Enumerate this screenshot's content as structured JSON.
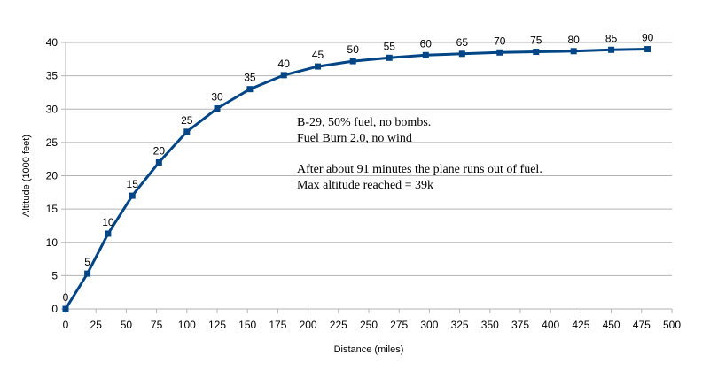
{
  "chart_data": {
    "type": "line",
    "title": "",
    "xlabel": "Distance (miles)",
    "ylabel": "Altitude (1000 feet)",
    "xlim": [
      0,
      500
    ],
    "ylim": [
      0,
      40
    ],
    "x_ticks": [
      0,
      25,
      50,
      75,
      100,
      125,
      150,
      175,
      200,
      225,
      250,
      275,
      300,
      325,
      350,
      375,
      400,
      425,
      450,
      475,
      500
    ],
    "y_ticks": [
      0,
      5,
      10,
      15,
      20,
      25,
      30,
      35,
      40
    ],
    "grid": "horizontal",
    "legend": "none",
    "line_color": "#004586",
    "series": [
      {
        "points": [
          {
            "x": 0,
            "y": 0,
            "label": "0"
          },
          {
            "x": 18,
            "y": 5.3,
            "label": "5"
          },
          {
            "x": 35,
            "y": 11.3,
            "label": "10"
          },
          {
            "x": 55,
            "y": 17.0,
            "label": "15"
          },
          {
            "x": 77,
            "y": 22.0,
            "label": "20"
          },
          {
            "x": 100,
            "y": 26.6,
            "label": "25"
          },
          {
            "x": 125,
            "y": 30.1,
            "label": "30"
          },
          {
            "x": 152,
            "y": 33.0,
            "label": "35"
          },
          {
            "x": 180,
            "y": 35.1,
            "label": "40"
          },
          {
            "x": 208,
            "y": 36.4,
            "label": "45"
          },
          {
            "x": 237,
            "y": 37.2,
            "label": "50"
          },
          {
            "x": 267,
            "y": 37.7,
            "label": "55"
          },
          {
            "x": 297,
            "y": 38.1,
            "label": "60"
          },
          {
            "x": 327,
            "y": 38.3,
            "label": "65"
          },
          {
            "x": 358,
            "y": 38.5,
            "label": "70"
          },
          {
            "x": 388,
            "y": 38.6,
            "label": "75"
          },
          {
            "x": 419,
            "y": 38.7,
            "label": "80"
          },
          {
            "x": 450,
            "y": 38.9,
            "label": "85"
          },
          {
            "x": 480,
            "y": 39.0,
            "label": "90"
          }
        ]
      }
    ],
    "annotations": [
      "B-29, 50% fuel, no bombs.",
      "Fuel Burn 2.0, no wind",
      "After about 91  minutes the plane runs out of fuel.",
      "Max altitude reached = 39k"
    ]
  }
}
